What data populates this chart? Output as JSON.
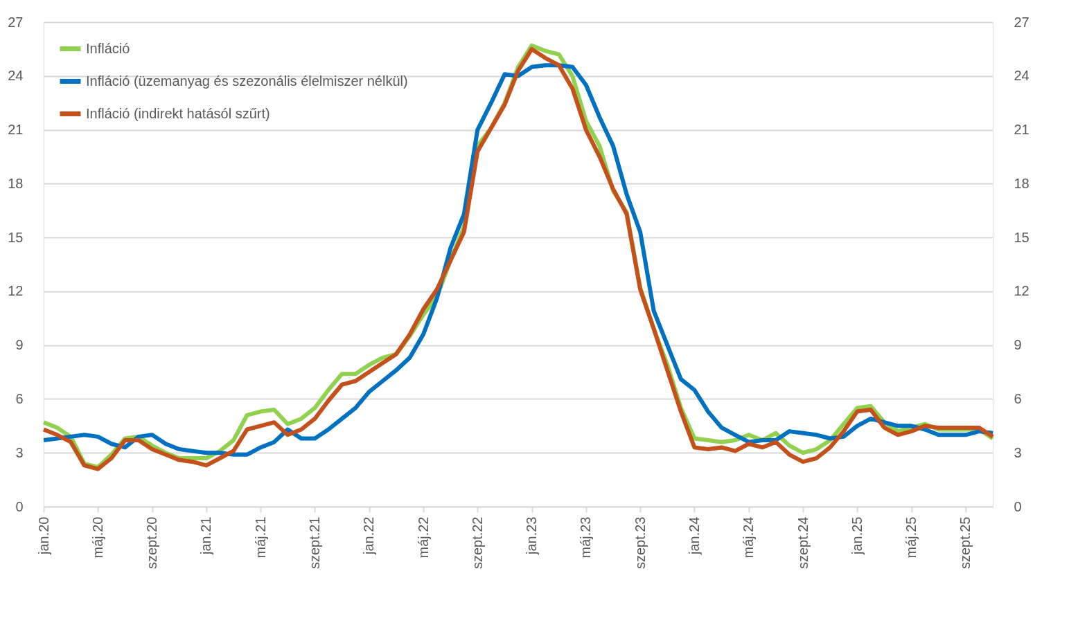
{
  "chart_data": {
    "type": "line",
    "categories": [
      "jan.20",
      null,
      null,
      null,
      "máj.20",
      null,
      null,
      null,
      "szept.20",
      null,
      null,
      null,
      "jan.21",
      null,
      null,
      null,
      "máj.21",
      null,
      null,
      null,
      "szept.21",
      null,
      null,
      null,
      "jan.22",
      null,
      null,
      null,
      "máj.22",
      null,
      null,
      null,
      "szept.22",
      null,
      null,
      null,
      "jan.23",
      null,
      null,
      null,
      "máj.23",
      null,
      null,
      null,
      "szept.23",
      null,
      null,
      null,
      "jan.24",
      null,
      null,
      null,
      "máj.24",
      null,
      null,
      null,
      "szept.24",
      null,
      null,
      null,
      "jan.25",
      null,
      null,
      null,
      "máj.25",
      null,
      null,
      null,
      "szept.25",
      null,
      null
    ],
    "series": [
      {
        "name": "Infláció",
        "color": "#92d050",
        "values": [
          4.7,
          4.4,
          3.9,
          2.4,
          2.2,
          2.9,
          3.8,
          3.9,
          3.4,
          3.0,
          2.7,
          2.7,
          2.7,
          3.1,
          3.7,
          5.1,
          5.3,
          5.4,
          4.6,
          4.9,
          5.5,
          6.5,
          7.4,
          7.4,
          7.9,
          8.3,
          8.5,
          9.5,
          10.7,
          11.7,
          13.7,
          15.6,
          20.1,
          21.1,
          22.5,
          24.5,
          25.7,
          25.4,
          25.2,
          24.0,
          21.5,
          20.1,
          17.6,
          16.4,
          12.2,
          9.9,
          7.9,
          5.5,
          3.8,
          3.7,
          3.6,
          3.7,
          4.0,
          3.7,
          4.1,
          3.4,
          3.0,
          3.2,
          3.7,
          4.6,
          5.5,
          5.6,
          4.7,
          4.2,
          4.4,
          4.6,
          4.3,
          4.3,
          4.3,
          4.3,
          3.8
        ]
      },
      {
        "name": "Infláció (üzemanyag és szezonális élelmiszer nélkül)",
        "color": "#0070c0",
        "values": [
          3.7,
          3.8,
          3.9,
          4.0,
          3.9,
          3.5,
          3.3,
          3.9,
          4.0,
          3.5,
          3.2,
          3.1,
          3.0,
          3.0,
          2.9,
          2.9,
          3.3,
          3.6,
          4.3,
          3.8,
          3.8,
          4.3,
          4.9,
          5.5,
          6.4,
          7.0,
          7.6,
          8.3,
          9.6,
          11.6,
          14.4,
          16.3,
          21.0,
          22.5,
          24.1,
          24.0,
          24.5,
          24.6,
          24.6,
          24.5,
          23.5,
          21.7,
          20.1,
          17.4,
          15.3,
          10.9,
          9.0,
          7.1,
          6.5,
          5.3,
          4.4,
          4.0,
          3.6,
          3.7,
          3.7,
          4.2,
          4.1,
          4.0,
          3.8,
          3.9,
          4.5,
          4.9,
          4.7,
          4.5,
          4.5,
          4.3,
          4.0,
          4.0,
          4.0,
          4.2,
          4.1
        ]
      },
      {
        "name": "Infláció (indirekt hatásól szűrt)",
        "color": "#c4501b",
        "values": [
          4.3,
          4.0,
          3.6,
          2.3,
          2.1,
          2.7,
          3.7,
          3.7,
          3.2,
          2.9,
          2.6,
          2.5,
          2.3,
          2.7,
          3.1,
          4.3,
          4.5,
          4.7,
          4.0,
          4.3,
          4.9,
          5.9,
          6.8,
          7.0,
          7.5,
          8.0,
          8.5,
          9.6,
          11.0,
          12.1,
          13.7,
          15.3,
          19.8,
          21.1,
          22.4,
          24.3,
          25.5,
          25.0,
          24.6,
          23.3,
          21.0,
          19.5,
          17.7,
          16.3,
          12.1,
          9.9,
          7.6,
          5.3,
          3.3,
          3.2,
          3.3,
          3.1,
          3.5,
          3.3,
          3.6,
          2.9,
          2.5,
          2.7,
          3.3,
          4.2,
          5.3,
          5.4,
          4.4,
          4.0,
          4.2,
          4.5,
          4.4,
          4.4,
          4.4,
          4.4,
          3.9
        ]
      }
    ],
    "ylim": [
      0,
      27
    ],
    "yticks": [
      0,
      3,
      6,
      9,
      12,
      15,
      18,
      21,
      24,
      27
    ],
    "y2lim": [
      0,
      27
    ],
    "y2ticks": [
      0,
      3,
      6,
      9,
      12,
      15,
      18,
      21,
      24,
      27
    ],
    "grid": "y",
    "legend": "top left",
    "line_style": "solid",
    "marker": "none"
  }
}
